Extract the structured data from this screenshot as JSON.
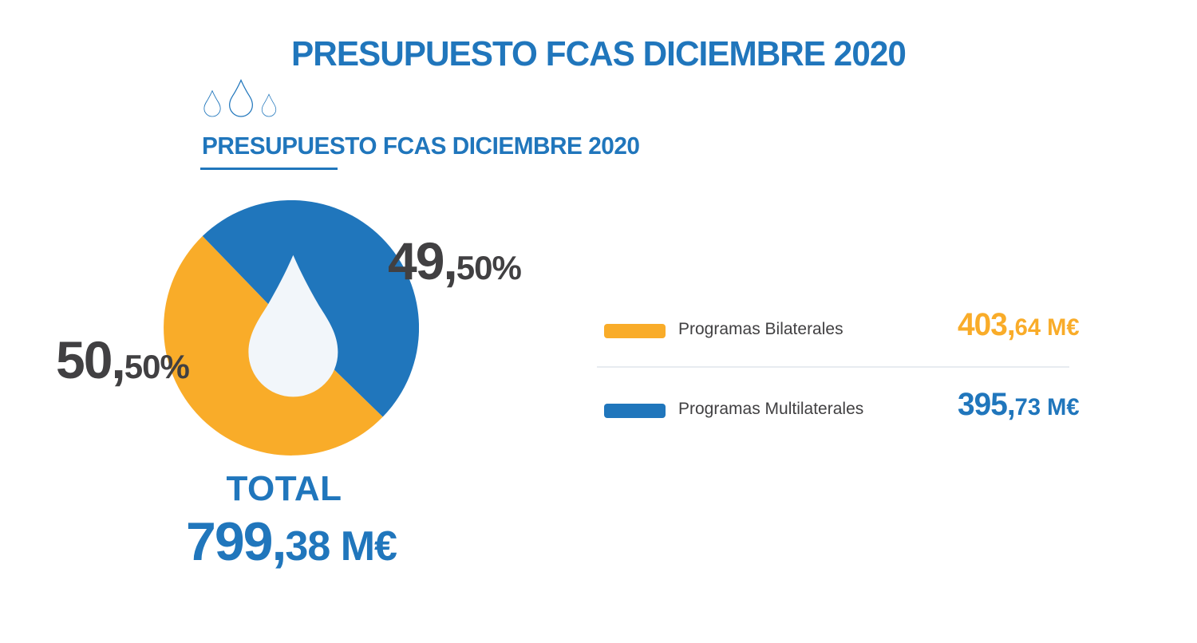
{
  "title": "PRESUPUESTO FCAS DICIEMBRE 2020",
  "header": {
    "subtitle": "PRESUPUESTO FCAS DICIEMBRE 2020",
    "decoration": "three-water-droplets-icon"
  },
  "colors": {
    "blue": "#2076BC",
    "orange": "#F9AC29",
    "dark_text": "#414042",
    "droplet_fill": "#F2F6FA",
    "divider": "#E7EBF0"
  },
  "chart_data": {
    "type": "pie",
    "title": "PRESUPUESTO FCAS DICIEMBRE 2020",
    "categories": [
      "Programas Bilaterales",
      "Programas Multilaterales"
    ],
    "values_percent": [
      50.5,
      49.5
    ],
    "values_meur": [
      403.64,
      395.73
    ],
    "colors": [
      "#F9AC29",
      "#2076BC"
    ],
    "start_angle_deg": 134.2,
    "clockwise": true,
    "legend_position": "right",
    "center_icon": "water-droplet",
    "total_meur": 799.38
  },
  "pie_labels": {
    "bilaterales": {
      "big": "50,",
      "small": "50%"
    },
    "multilaterales": {
      "big": "49,",
      "small": "50%"
    }
  },
  "legend": {
    "rows": [
      {
        "label": "Programas Bilaterales",
        "value_big": "403,",
        "value_small": "64 M€"
      },
      {
        "label": "Programas Multilaterales",
        "value_big": "395,",
        "value_small": "73 M€"
      }
    ]
  },
  "total": {
    "label": "TOTAL",
    "value_big": "799,",
    "value_small": "38 M€"
  }
}
